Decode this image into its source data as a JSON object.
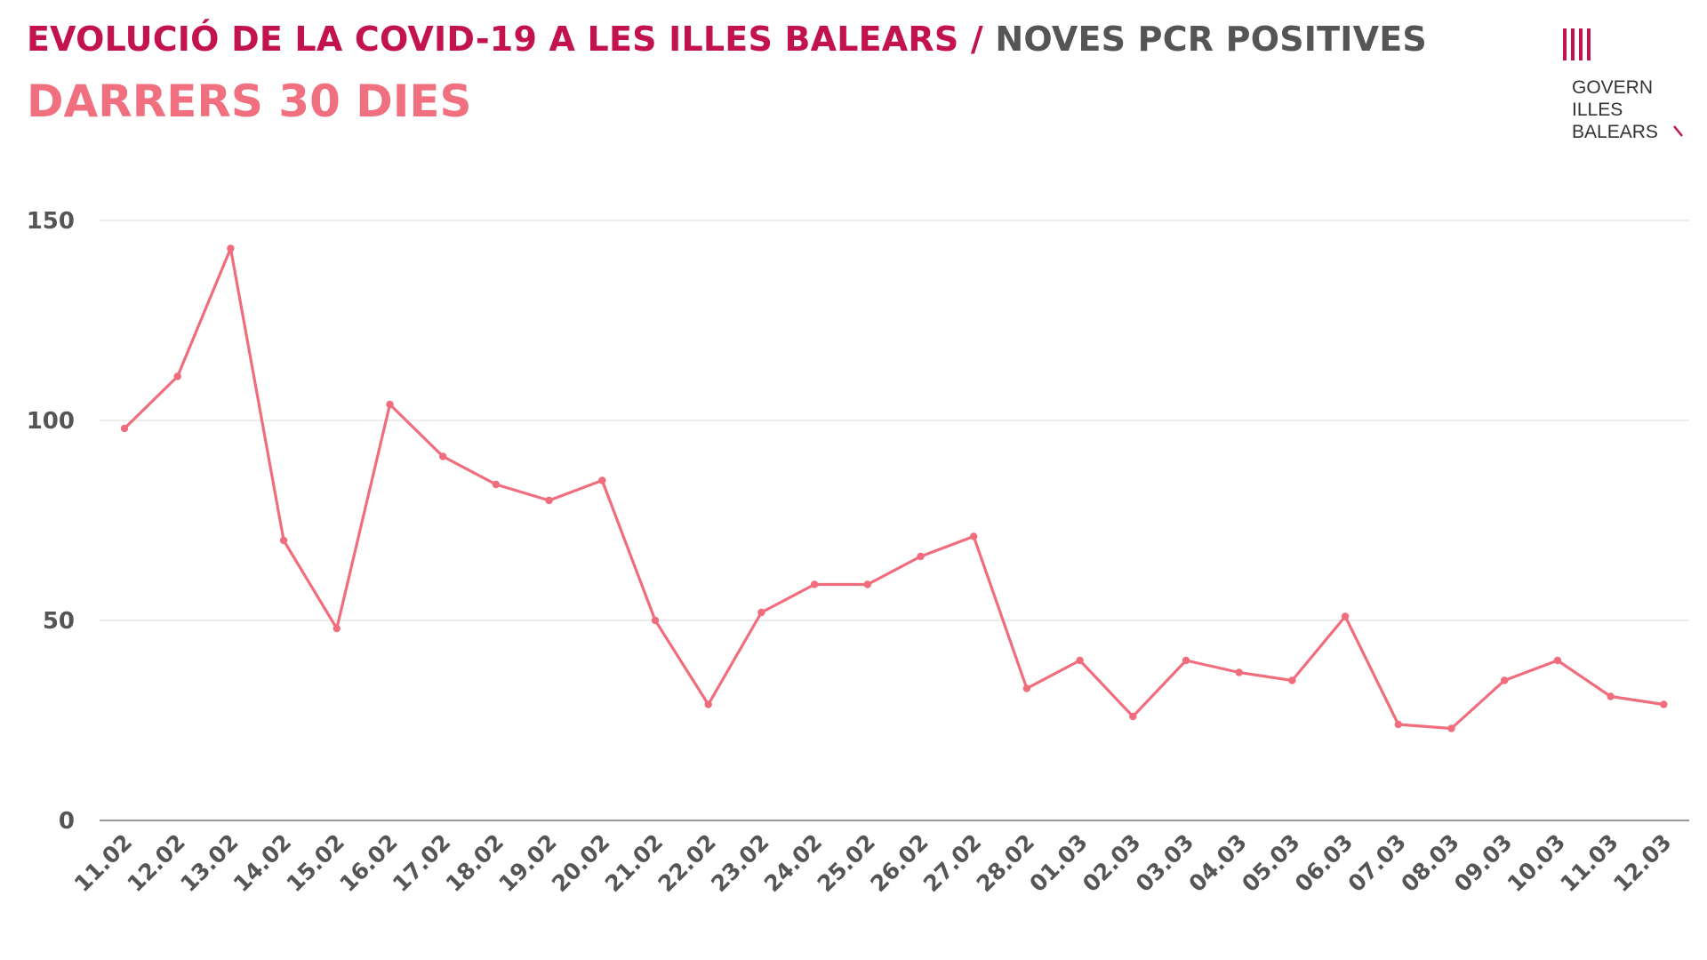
{
  "header": {
    "title_main": "EVOLUCIÓ DE LA COVID-19 A LES ILLES BALEARS",
    "title_separator": "/",
    "title_sub": "NOVES PCR POSITIVES",
    "subtitle": "DARRERS 30 DIES"
  },
  "logo": {
    "icon": "govern-illes-balears-bars-icon",
    "line1": "GOVERN",
    "line2": "ILLES",
    "line3": "BALEARS"
  },
  "colors": {
    "title_main": "#c3134f",
    "title_sub": "#555555",
    "subtitle": "#f07080",
    "line": "#ef6d7c",
    "grid": "#e6e6e6",
    "axis": "#999999",
    "ticks": "#555555"
  },
  "chart_data": {
    "type": "line",
    "title": "DARRERS 30 DIES",
    "xlabel": "",
    "ylabel": "",
    "ylim": [
      0,
      150
    ],
    "yticks": [
      0,
      50,
      100,
      150
    ],
    "grid": true,
    "legend": "none",
    "categories": [
      "11.02",
      "12.02",
      "13.02",
      "14.02",
      "15.02",
      "16.02",
      "17.02",
      "18.02",
      "19.02",
      "20.02",
      "21.02",
      "22.02",
      "23.02",
      "24.02",
      "25.02",
      "26.02",
      "27.02",
      "28.02",
      "01.03",
      "02.03",
      "03.03",
      "04.03",
      "05.03",
      "06.03",
      "07.03",
      "08.03",
      "09.03",
      "10.03",
      "11.03",
      "12.03"
    ],
    "series": [
      {
        "values": [
          98,
          111,
          143,
          70,
          48,
          104,
          91,
          84,
          80,
          85,
          50,
          29,
          52,
          59,
          59,
          66,
          71,
          33,
          40,
          26,
          40,
          37,
          35,
          51,
          24,
          23,
          35,
          40,
          31,
          29
        ]
      }
    ]
  }
}
